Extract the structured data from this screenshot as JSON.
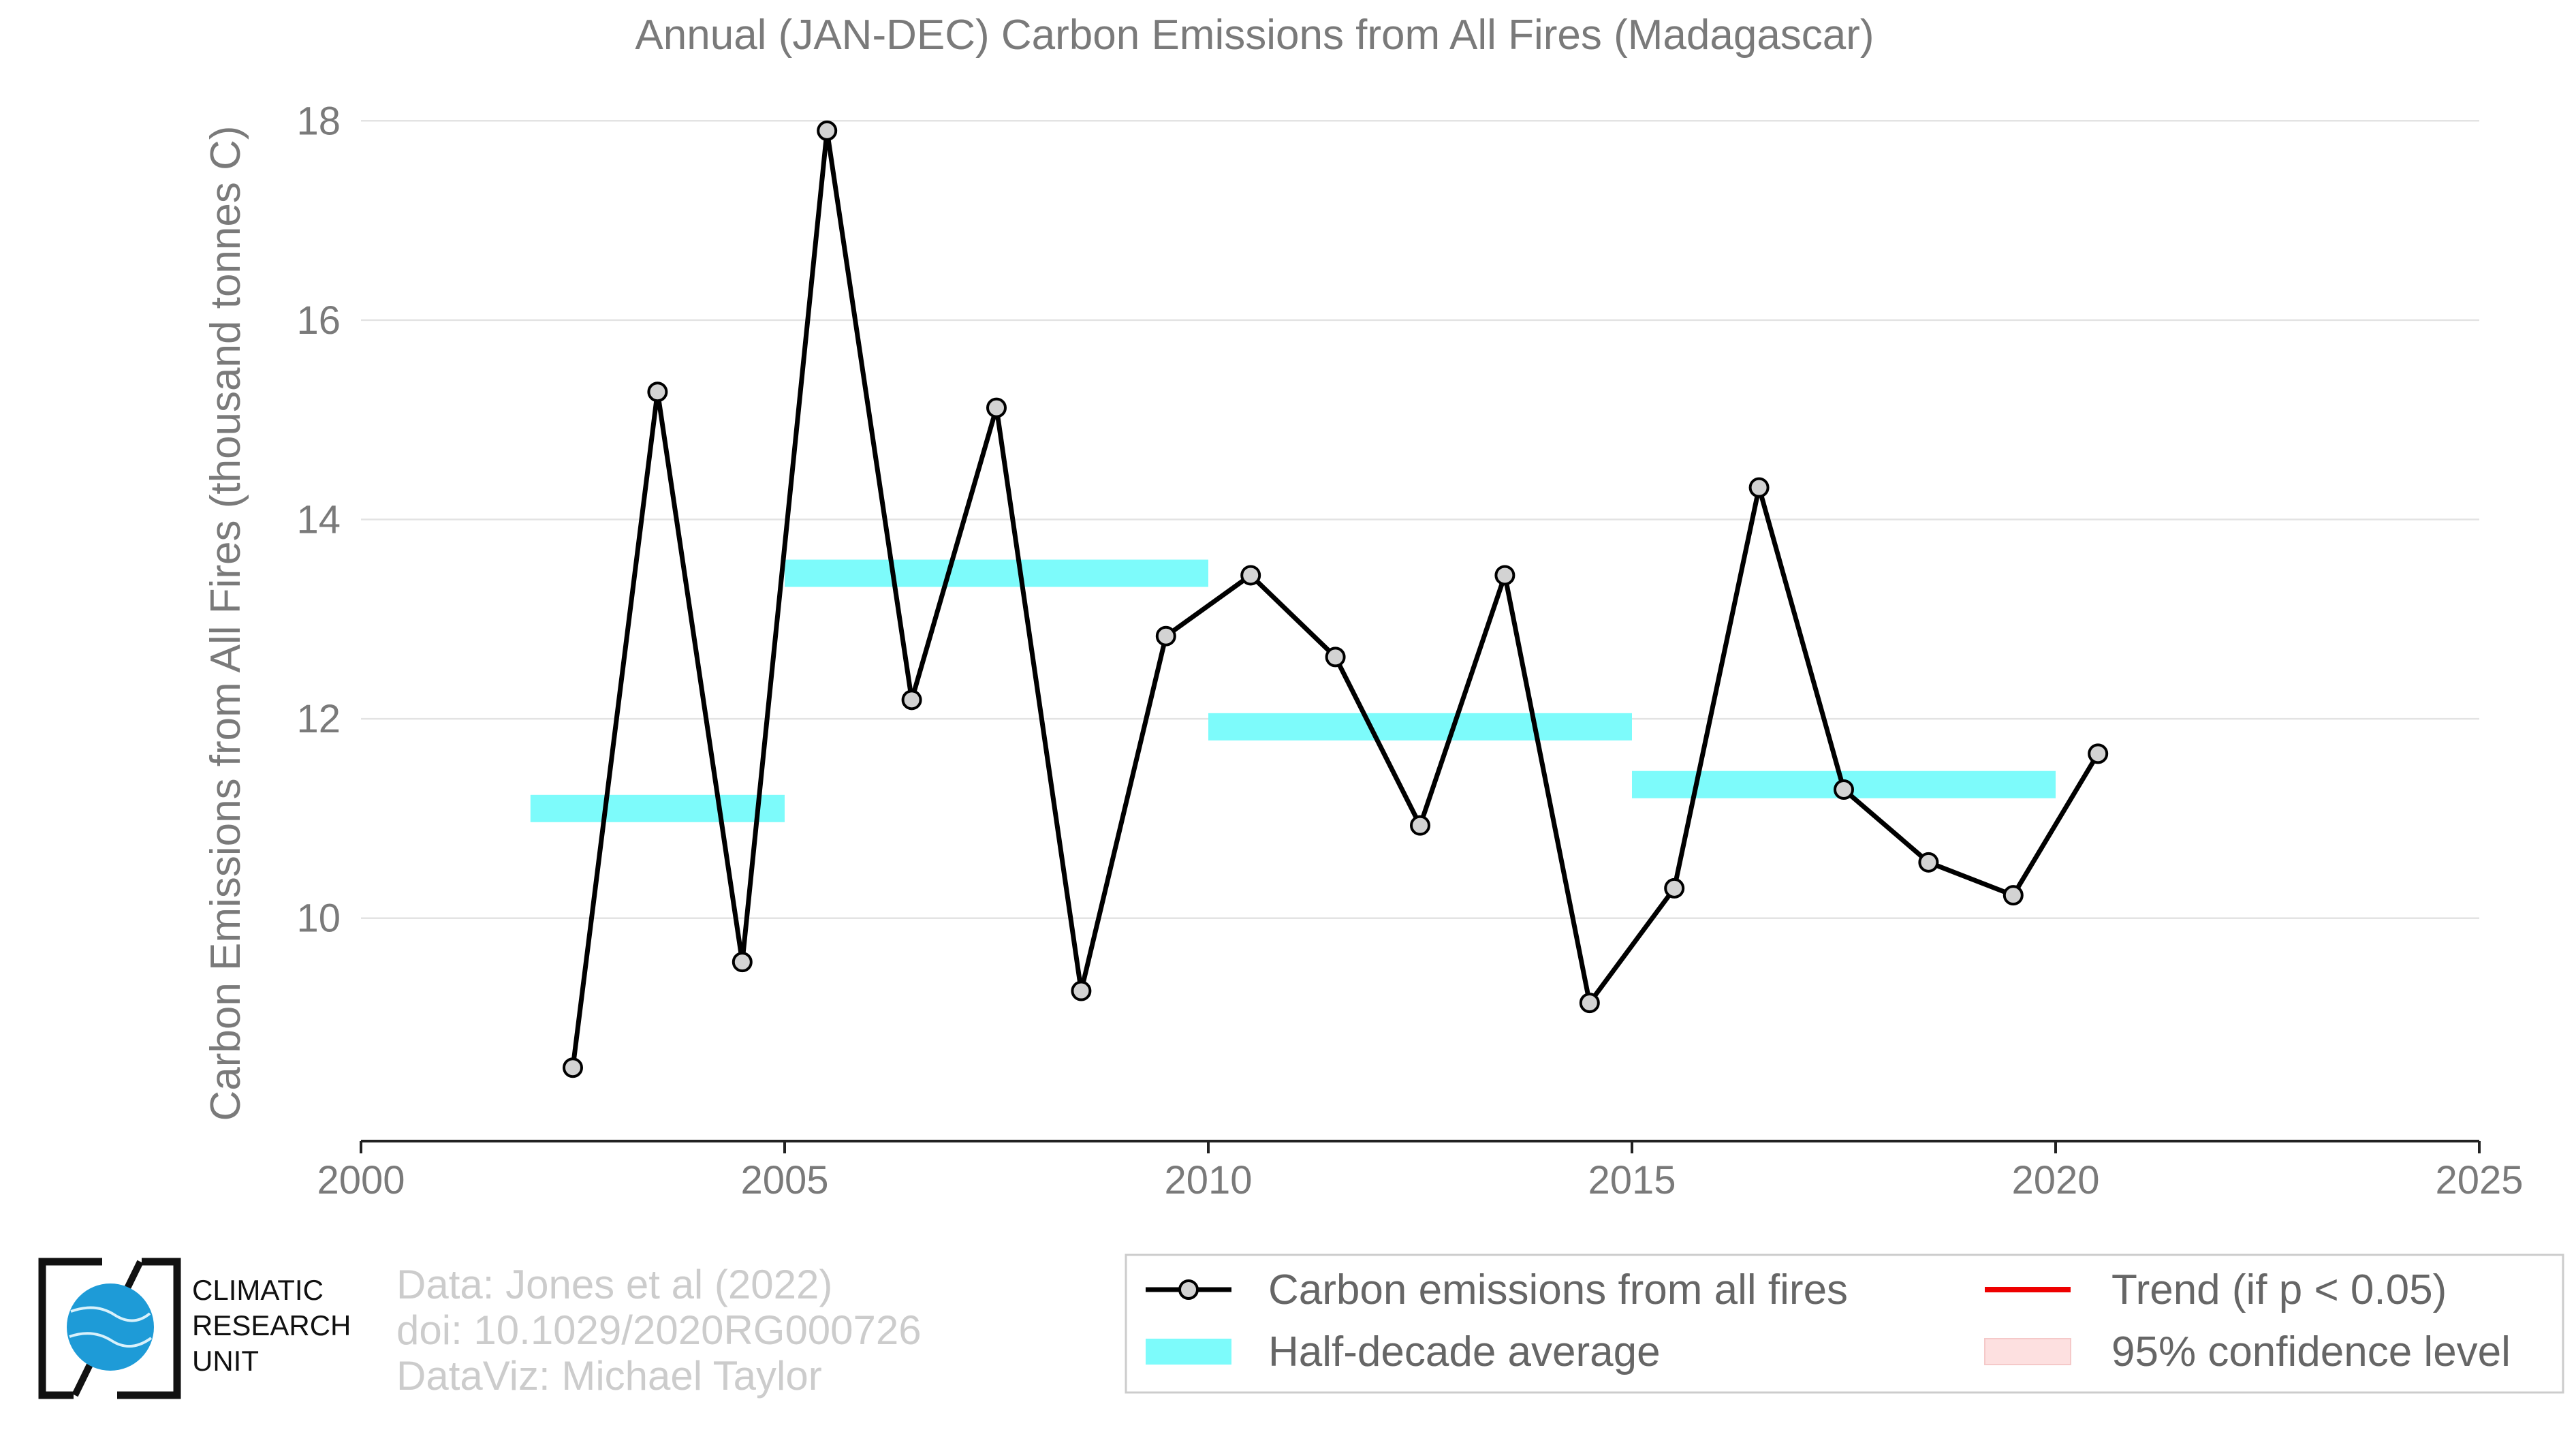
{
  "chart_data": {
    "type": "line",
    "title": "Annual (JAN-DEC) Carbon Emissions from All Fires (Madagascar)",
    "xlabel": "",
    "ylabel": "Carbon Emissions from All Fires (thousand tonnes C)",
    "xlim": [
      2000,
      2025
    ],
    "ylim": [
      7.9,
      18.2
    ],
    "x_ticks": [
      2000,
      2005,
      2010,
      2015,
      2020,
      2025
    ],
    "y_ticks": [
      10,
      12,
      14,
      16,
      18
    ],
    "grid": true,
    "legend_position": "bottom-right",
    "series": [
      {
        "name": "Carbon emissions from all fires",
        "color": "#000000",
        "marker_fill": "#d3d3d3",
        "x": [
          2002.5,
          2003.5,
          2004.5,
          2005.5,
          2006.5,
          2007.5,
          2008.5,
          2009.5,
          2010.5,
          2011.5,
          2012.5,
          2013.5,
          2014.5,
          2015.5,
          2016.5,
          2017.5,
          2018.5,
          2019.5,
          2020.5
        ],
        "values": [
          8.5,
          15.28,
          9.56,
          17.9,
          12.19,
          15.12,
          9.27,
          12.83,
          13.44,
          12.62,
          10.93,
          13.44,
          9.15,
          10.3,
          14.32,
          11.29,
          10.56,
          10.23,
          11.65
        ]
      },
      {
        "name": "Half-decade average",
        "color": "#7dfbfb",
        "segments": [
          {
            "x_start": 2002,
            "x_end": 2005,
            "value": 11.1
          },
          {
            "x_start": 2005,
            "x_end": 2010,
            "value": 13.46
          },
          {
            "x_start": 2010,
            "x_end": 2015,
            "value": 11.92
          },
          {
            "x_start": 2015,
            "x_end": 2020,
            "value": 11.34
          }
        ]
      }
    ],
    "legend": [
      {
        "label": "Carbon emissions from all fires",
        "kind": "line-marker",
        "color": "#000000"
      },
      {
        "label": "Half-decade average",
        "kind": "band",
        "color": "#7dfbfb"
      },
      {
        "label": "Trend (if p < 0.05)",
        "kind": "line",
        "color": "#ee0000"
      },
      {
        "label": "95% confidence level",
        "kind": "band",
        "color": "#fde0e0"
      }
    ]
  },
  "credits": {
    "line1": "Data: Jones et al (2022)",
    "line2": "doi: 10.1029/2020RG000726",
    "line3": "DataViz: Michael Taylor"
  },
  "logo": {
    "line1": "CLIMATIC",
    "line2": "RESEARCH",
    "line3": "UNIT",
    "accent": "#1e9bd7"
  }
}
